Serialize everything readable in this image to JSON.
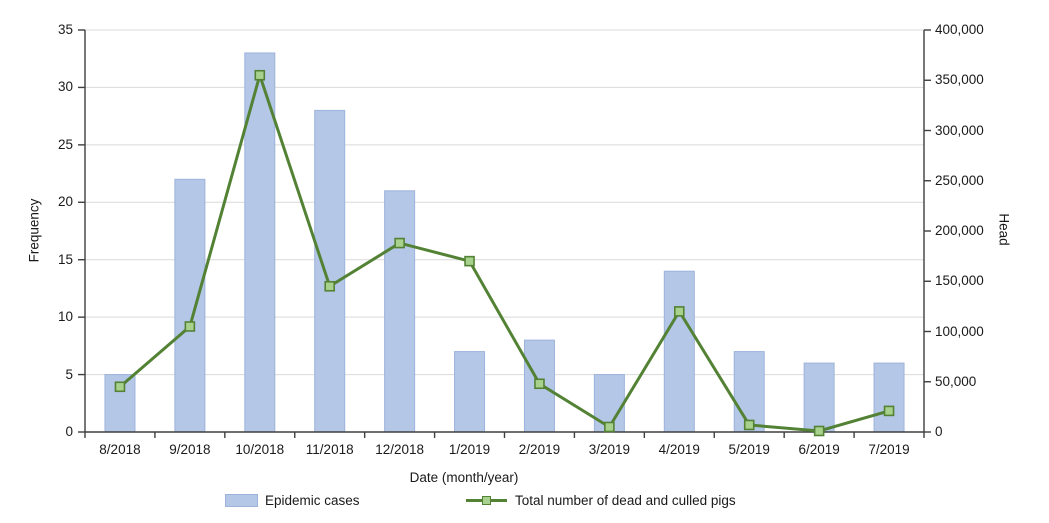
{
  "chart_data": {
    "type": "bar+line combo",
    "categories": [
      "8/2018",
      "9/2018",
      "10/2018",
      "11/2018",
      "12/2018",
      "1/2019",
      "2/2019",
      "3/2019",
      "4/2019",
      "5/2019",
      "6/2019",
      "7/2019"
    ],
    "series": [
      {
        "name": "Epidemic cases",
        "type": "bar",
        "axis": "left",
        "values": [
          5,
          22,
          33,
          28,
          21,
          7,
          8,
          5,
          14,
          7,
          6,
          6
        ]
      },
      {
        "name": "Total number of dead and culled pigs",
        "type": "line",
        "axis": "right",
        "values": [
          45000,
          105000,
          355000,
          145000,
          188000,
          170000,
          48000,
          5000,
          120000,
          7000,
          1000,
          21000
        ]
      }
    ],
    "left_axis": {
      "label": "Frequency",
      "min": 0,
      "max": 35,
      "step": 5,
      "tick_labels": [
        "0",
        "5",
        "10",
        "15",
        "20",
        "25",
        "30",
        "35"
      ]
    },
    "right_axis": {
      "label": "Head",
      "min": 0,
      "max": 400000,
      "step": 50000,
      "tick_labels": [
        "0",
        "50,000",
        "100,000",
        "150,000",
        "200,000",
        "250,000",
        "300,000",
        "350,000",
        "400,000"
      ]
    },
    "x_axis": {
      "label": "Date (month/year)"
    },
    "grid": "horizontal",
    "legend_position": "bottom"
  },
  "legend": {
    "items": [
      {
        "label": "Epidemic cases",
        "swatch": "bar-swatch"
      },
      {
        "label": "Total number of dead and culled pigs",
        "swatch": "line-marker-swatch"
      }
    ]
  },
  "colors": {
    "bar_fill": "#b4c7e7",
    "bar_border": "#9db3dc",
    "line": "#538235",
    "marker_fill": "#a9d18e",
    "marker_border": "#538235",
    "grid": "#d9d9d9",
    "axis": "#3f3f3f",
    "text": "#1a1a1a"
  }
}
